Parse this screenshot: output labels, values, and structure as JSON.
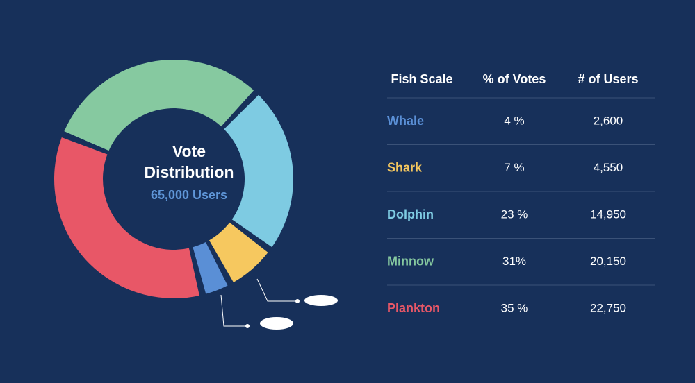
{
  "chart_data": {
    "type": "pie",
    "donut": true,
    "title": "Vote Distribution",
    "subtitle": "65,000 Users",
    "categories": [
      "Whale",
      "Shark",
      "Dolphin",
      "Minnow",
      "Plankton"
    ],
    "values": [
      4,
      7,
      23,
      31,
      35
    ],
    "value_labels": [
      "4 %",
      "7 %",
      "23 %",
      "31%",
      "35 %"
    ],
    "colors": [
      "#5a8fd6",
      "#f6c85f",
      "#7ecbe2",
      "#86c9a0",
      "#e85767"
    ]
  },
  "table": {
    "headers": [
      "Fish Scale",
      "% of Votes",
      "# of Users"
    ],
    "users": [
      "2,600",
      "4,550",
      "14,950",
      "20,150",
      "22,750"
    ]
  }
}
